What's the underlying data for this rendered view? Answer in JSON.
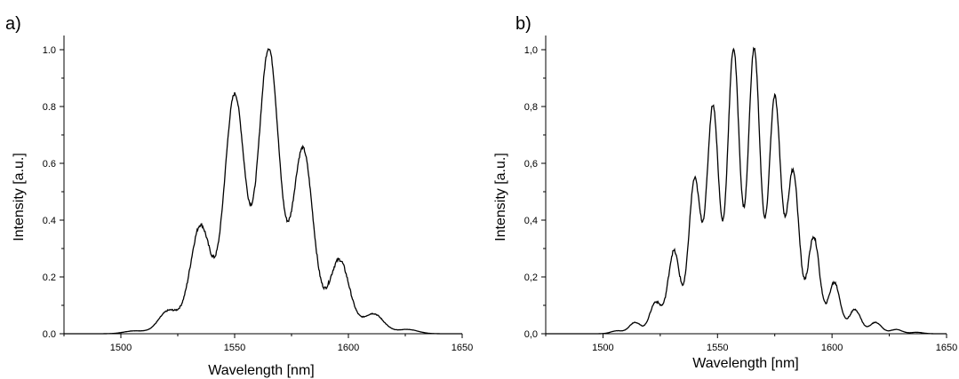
{
  "chart_data": [
    {
      "type": "line",
      "panel_label": "a)",
      "xlabel": "Wavelength [nm]",
      "ylabel": "Intensity [a.u.]",
      "xlim": [
        1475,
        1650
      ],
      "ylim": [
        0,
        1.05
      ],
      "x_ticks": [
        1500,
        1550,
        1600,
        1650
      ],
      "x_tick_labels": [
        "1500",
        "1550",
        "1600",
        "1650"
      ],
      "y_ticks": [
        0,
        0.2,
        0.4,
        0.6,
        0.8,
        1.0
      ],
      "y_tick_labels": [
        "0.0",
        "0.2",
        "0.4",
        "0.6",
        "0.8",
        "1.0"
      ],
      "grid": false,
      "peaks": [
        {
          "x": 1506,
          "y": 0.01
        },
        {
          "x": 1521,
          "y": 0.08
        },
        {
          "x": 1535,
          "y": 0.38
        },
        {
          "x": 1550,
          "y": 0.84
        },
        {
          "x": 1565,
          "y": 1.0
        },
        {
          "x": 1580,
          "y": 0.65
        },
        {
          "x": 1596,
          "y": 0.26
        },
        {
          "x": 1611,
          "y": 0.07
        },
        {
          "x": 1626,
          "y": 0.015
        }
      ],
      "peak_width_nm": 4.5,
      "line_color": "#000000"
    },
    {
      "type": "line",
      "panel_label": "b)",
      "xlabel": "Wavelength [nm]",
      "ylabel": "Intensity [a.u.]",
      "xlim": [
        1475,
        1650
      ],
      "ylim": [
        0,
        1.05
      ],
      "x_ticks": [
        1500,
        1550,
        1600,
        1650
      ],
      "x_tick_labels": [
        "1500",
        "1550",
        "1600",
        "1650"
      ],
      "y_ticks": [
        0,
        0.2,
        0.4,
        0.6,
        0.8,
        1.0
      ],
      "y_tick_labels": [
        "0,0",
        "0,2",
        "0,4",
        "0,6",
        "0,8",
        "1,0"
      ],
      "grid": false,
      "peaks": [
        {
          "x": 1506,
          "y": 0.01
        },
        {
          "x": 1514,
          "y": 0.04
        },
        {
          "x": 1523,
          "y": 0.11
        },
        {
          "x": 1531,
          "y": 0.29
        },
        {
          "x": 1540,
          "y": 0.54
        },
        {
          "x": 1548,
          "y": 0.8
        },
        {
          "x": 1557,
          "y": 1.0
        },
        {
          "x": 1566,
          "y": 1.0
        },
        {
          "x": 1575,
          "y": 0.83
        },
        {
          "x": 1583,
          "y": 0.57
        },
        {
          "x": 1592,
          "y": 0.34
        },
        {
          "x": 1601,
          "y": 0.18
        },
        {
          "x": 1610,
          "y": 0.085
        },
        {
          "x": 1619,
          "y": 0.04
        },
        {
          "x": 1628,
          "y": 0.015
        },
        {
          "x": 1637,
          "y": 0.005
        }
      ],
      "peak_width_nm": 2.6,
      "line_color": "#000000"
    }
  ]
}
